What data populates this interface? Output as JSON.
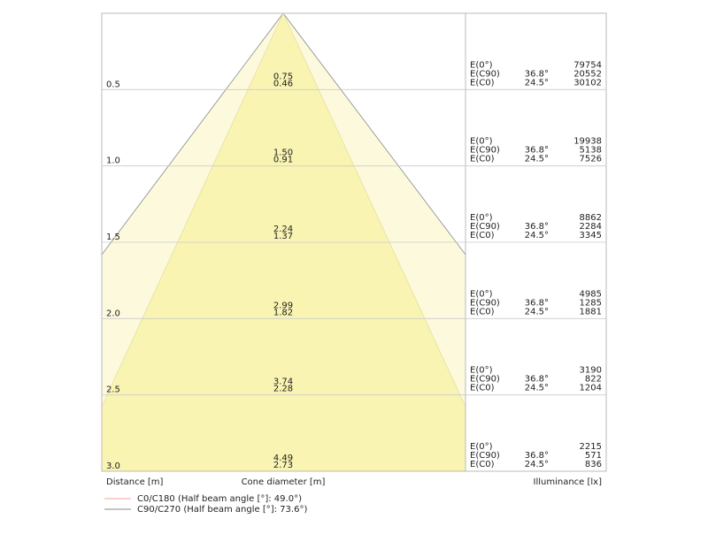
{
  "rows": [
    {
      "distance": "0.5",
      "c90_diameter": "0.75",
      "c0_diameter": "0.46",
      "e0_label": "E(0°)",
      "e0": "79754",
      "c90_label": "E(C90)",
      "c90_angle": "36.8°",
      "c90_value": "20552",
      "c0_label": "E(C0)",
      "c0_angle": "24.5°",
      "c0_value": "30102"
    },
    {
      "distance": "1.0",
      "c90_diameter": "1.50",
      "c0_diameter": "0.91",
      "e0_label": "E(0°)",
      "e0": "19938",
      "c90_label": "E(C90)",
      "c90_angle": "36.8°",
      "c90_value": "5138",
      "c0_label": "E(C0)",
      "c0_angle": "24.5°",
      "c0_value": "7526"
    },
    {
      "distance": "1.5",
      "c90_diameter": "2.24",
      "c0_diameter": "1.37",
      "e0_label": "E(0°)",
      "e0": "8862",
      "c90_label": "E(C90)",
      "c90_angle": "36.8°",
      "c90_value": "2284",
      "c0_label": "E(C0)",
      "c0_angle": "24.5°",
      "c0_value": "3345"
    },
    {
      "distance": "2.0",
      "c90_diameter": "2.99",
      "c0_diameter": "1.82",
      "e0_label": "E(0°)",
      "e0": "4985",
      "c90_label": "E(C90)",
      "c90_angle": "36.8°",
      "c90_value": "1285",
      "c0_label": "E(C0)",
      "c0_angle": "24.5°",
      "c0_value": "1881"
    },
    {
      "distance": "2.5",
      "c90_diameter": "3.74",
      "c0_diameter": "2.28",
      "e0_label": "E(0°)",
      "e0": "3190",
      "c90_label": "E(C90)",
      "c90_angle": "36.8°",
      "c90_value": "822",
      "c0_label": "E(C0)",
      "c0_angle": "24.5°",
      "c0_value": "1204"
    },
    {
      "distance": "3.0",
      "c90_diameter": "4.49",
      "c0_diameter": "2.73",
      "e0_label": "E(0°)",
      "e0": "2215",
      "c90_label": "E(C90)",
      "c90_angle": "36.8°",
      "c90_value": "571",
      "c0_label": "E(C0)",
      "c0_angle": "24.5°",
      "c0_value": "836"
    }
  ],
  "footer": {
    "distance": "Distance [m]",
    "diameter": "Cone diameter [m]",
    "illuminance": "Illuminance [lx]"
  },
  "legend": [
    "C0/C180 (Half beam angle [°]: 49.0°)",
    "C90/C270 (Half beam angle [°]: 73.6°)"
  ]
}
